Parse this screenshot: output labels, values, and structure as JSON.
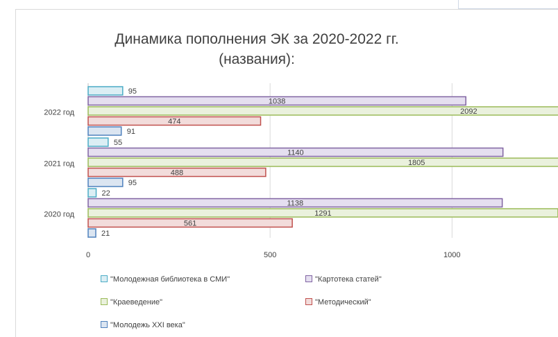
{
  "title_line1": "Динамика пополнения ЭК за 2020-2022 гг.",
  "title_line2": "(названия):",
  "chart_data": {
    "type": "bar",
    "orientation": "horizontal",
    "categories": [
      "2022 год",
      "2021 год",
      "2020 год"
    ],
    "series": [
      {
        "name": "\"Молодежная библиотека в СМИ\"",
        "values": [
          95,
          55,
          22
        ],
        "color": "#4bacc6",
        "fill": "#dbeef4"
      },
      {
        "name": "\"Картотека статей\"",
        "values": [
          1038,
          1140,
          1138
        ],
        "color": "#8064a2",
        "fill": "#e5dff0"
      },
      {
        "name": "\"Краеведение\"",
        "values": [
          2092,
          1805,
          1291
        ],
        "color": "#9bbb59",
        "fill": "#eaf1dd"
      },
      {
        "name": "\"Методический\"",
        "values": [
          474,
          488,
          561
        ],
        "color": "#c0504d",
        "fill": "#f2dcdb"
      },
      {
        "name": "\"Молодежь XXI века\"",
        "values": [
          91,
          95,
          21
        ],
        "color": "#4f81bd",
        "fill": "#dbe5f1"
      }
    ],
    "xlim": [
      0,
      2500
    ],
    "xticks": [
      0,
      500,
      1000,
      1500,
      2000,
      2500
    ],
    "grid": "vertical",
    "legend_position": "bottom"
  },
  "legend_items": [
    "\"Молодежная библиотека в СМИ\"",
    "\"Картотека статей\"",
    "\"Краеведение\"",
    "\"Методический\"",
    "\"Молодежь XXI века\""
  ]
}
